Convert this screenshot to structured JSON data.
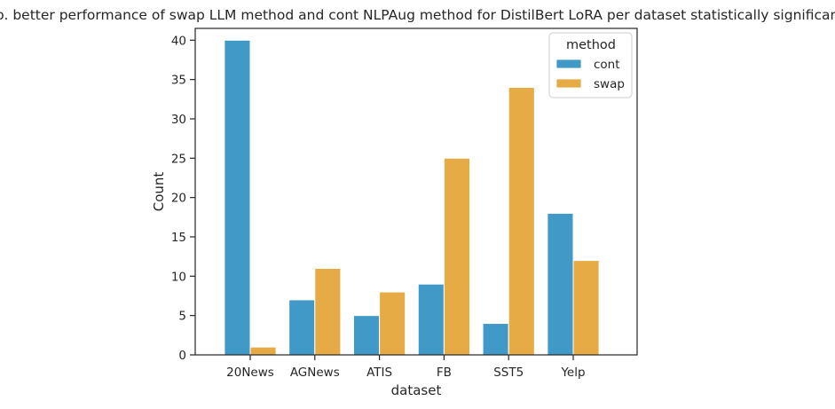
{
  "chart_data": {
    "type": "bar",
    "title": "No. better performance of swap LLM method and cont NLPAug method for DistilBert LoRA per dataset statistically significant.",
    "xlabel": "dataset",
    "ylabel": "Count",
    "categories": [
      "20News",
      "AGNews",
      "ATIS",
      "FB",
      "SST5",
      "Yelp"
    ],
    "series": [
      {
        "name": "cont",
        "color": "#4199c8",
        "values": [
          40,
          7,
          5,
          9,
          4,
          18
        ]
      },
      {
        "name": "swap",
        "color": "#e6ab44",
        "values": [
          1,
          11,
          8,
          25,
          34,
          12
        ]
      }
    ],
    "ylim": [
      0,
      41.5
    ],
    "yticks": [
      0,
      5,
      10,
      15,
      20,
      25,
      30,
      35,
      40
    ],
    "grid": false,
    "legend": {
      "title": "method",
      "placement": "top-right"
    }
  }
}
